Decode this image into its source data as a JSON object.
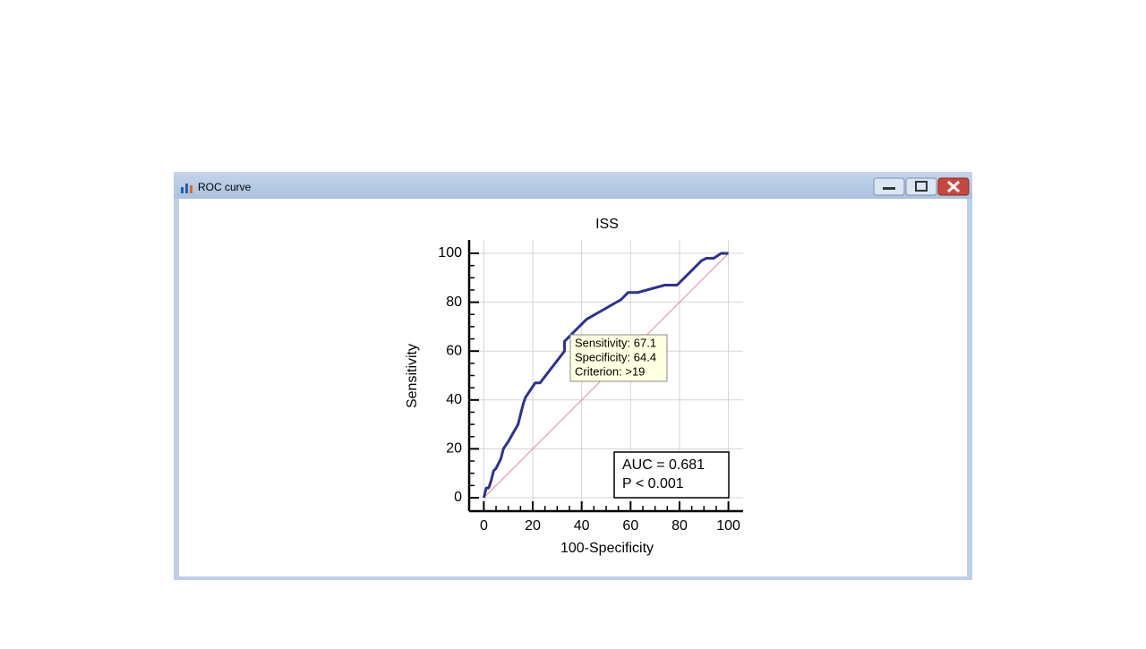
{
  "window": {
    "title": "ROC curve"
  },
  "chart_data": {
    "type": "line",
    "title": "ISS",
    "xlabel": "100-Specificity",
    "ylabel": "Sensitivity",
    "xlim": [
      -6,
      106
    ],
    "ylim": [
      -5.5,
      105.5
    ],
    "xticks": [
      0,
      20,
      40,
      60,
      80,
      100
    ],
    "yticks": [
      0,
      20,
      40,
      60,
      80,
      100
    ],
    "xminorticks": [
      5,
      10,
      15,
      25,
      30,
      35,
      45,
      50,
      55,
      65,
      70,
      75,
      85,
      90,
      95
    ],
    "yminorticks": [
      5,
      10,
      15,
      25,
      30,
      35,
      45,
      50,
      55,
      65,
      70,
      75,
      85,
      90,
      95
    ],
    "grid": true,
    "series": [
      {
        "color": "#2e3192",
        "x": [
          0,
          1,
          2,
          3,
          4,
          5,
          7,
          8,
          10,
          14,
          16,
          17,
          19,
          21,
          23,
          33,
          33,
          36,
          42,
          56,
          59,
          63,
          74,
          79,
          86,
          89,
          91,
          94,
          97,
          100
        ],
        "values": [
          0,
          4,
          4,
          7,
          11,
          12,
          16,
          20,
          23,
          30,
          38,
          41,
          44,
          47,
          47,
          60,
          64,
          67,
          73,
          81,
          84,
          84,
          87,
          87,
          94,
          97,
          98,
          98,
          100,
          100
        ]
      },
      {
        "color": "#e08a94",
        "x": [
          0,
          100
        ],
        "values": [
          0,
          100
        ]
      }
    ],
    "tooltip": [
      "Sensitivity: 67.1",
      "Specificity: 64.4",
      "Criterion: >19"
    ],
    "stats_box": [
      "AUC = 0.681",
      "P < 0.001"
    ]
  }
}
